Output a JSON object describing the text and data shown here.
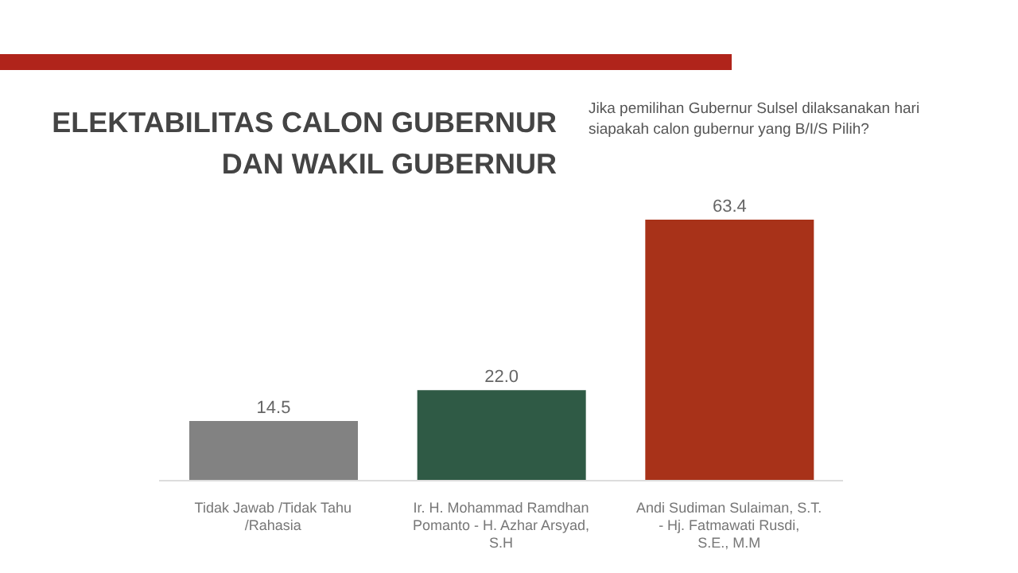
{
  "chart_data": {
    "type": "bar",
    "title": "ELEKTABILITAS CALON GUBERNUR DAN WAKIL GUBERNUR",
    "subtitle": "Jika pemilihan Gubernur Sulsel dilaksanakan hari siapakah calon gubernur yang B/I/S Pilih?",
    "categories": [
      "Tidak Jawab /Tidak Tahu /Rahasia",
      "Ir. H. Mohammad Ramdhan Pomanto - H. Azhar Arsyad, S.H",
      "Andi Sudiman Sulaiman, S.T. - Hj. Fatmawati Rusdi, S.E., M.M"
    ],
    "values": [
      14.5,
      22.0,
      63.4
    ],
    "colors": [
      "#828282",
      "#2f5a45",
      "#a83219"
    ],
    "value_labels": [
      "14.5",
      "22.0",
      "63.4"
    ],
    "data_labels": true
  }
}
